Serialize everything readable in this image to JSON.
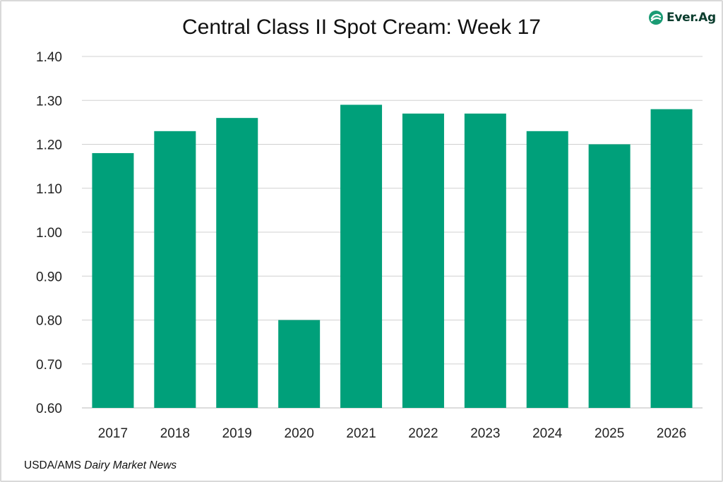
{
  "logo": {
    "text": "Ever.Ag",
    "icon": "ever-ag-swoosh-icon",
    "color": "#1a9b74"
  },
  "source": {
    "prefix": "USDA/AMS ",
    "italic": "Dairy Market News"
  },
  "chart_data": {
    "type": "bar",
    "title": "Central Class II Spot Cream: Week 17",
    "xlabel": "",
    "ylabel": "",
    "categories": [
      "2017",
      "2018",
      "2019",
      "2020",
      "2021",
      "2022",
      "2023",
      "2024",
      "2025",
      "2026"
    ],
    "series": [
      {
        "values": [
          1.18,
          1.23,
          1.26,
          0.8,
          1.29,
          1.27,
          1.27,
          1.23,
          1.2,
          1.28
        ]
      }
    ],
    "ylim": [
      0.6,
      1.4
    ],
    "yticks": [
      "0.60",
      "0.70",
      "0.80",
      "0.90",
      "1.00",
      "1.10",
      "1.20",
      "1.30",
      "1.40"
    ],
    "grid": true,
    "legend": "none",
    "bar_color": "#00a07a",
    "grid_color": "#d0d0d0"
  }
}
